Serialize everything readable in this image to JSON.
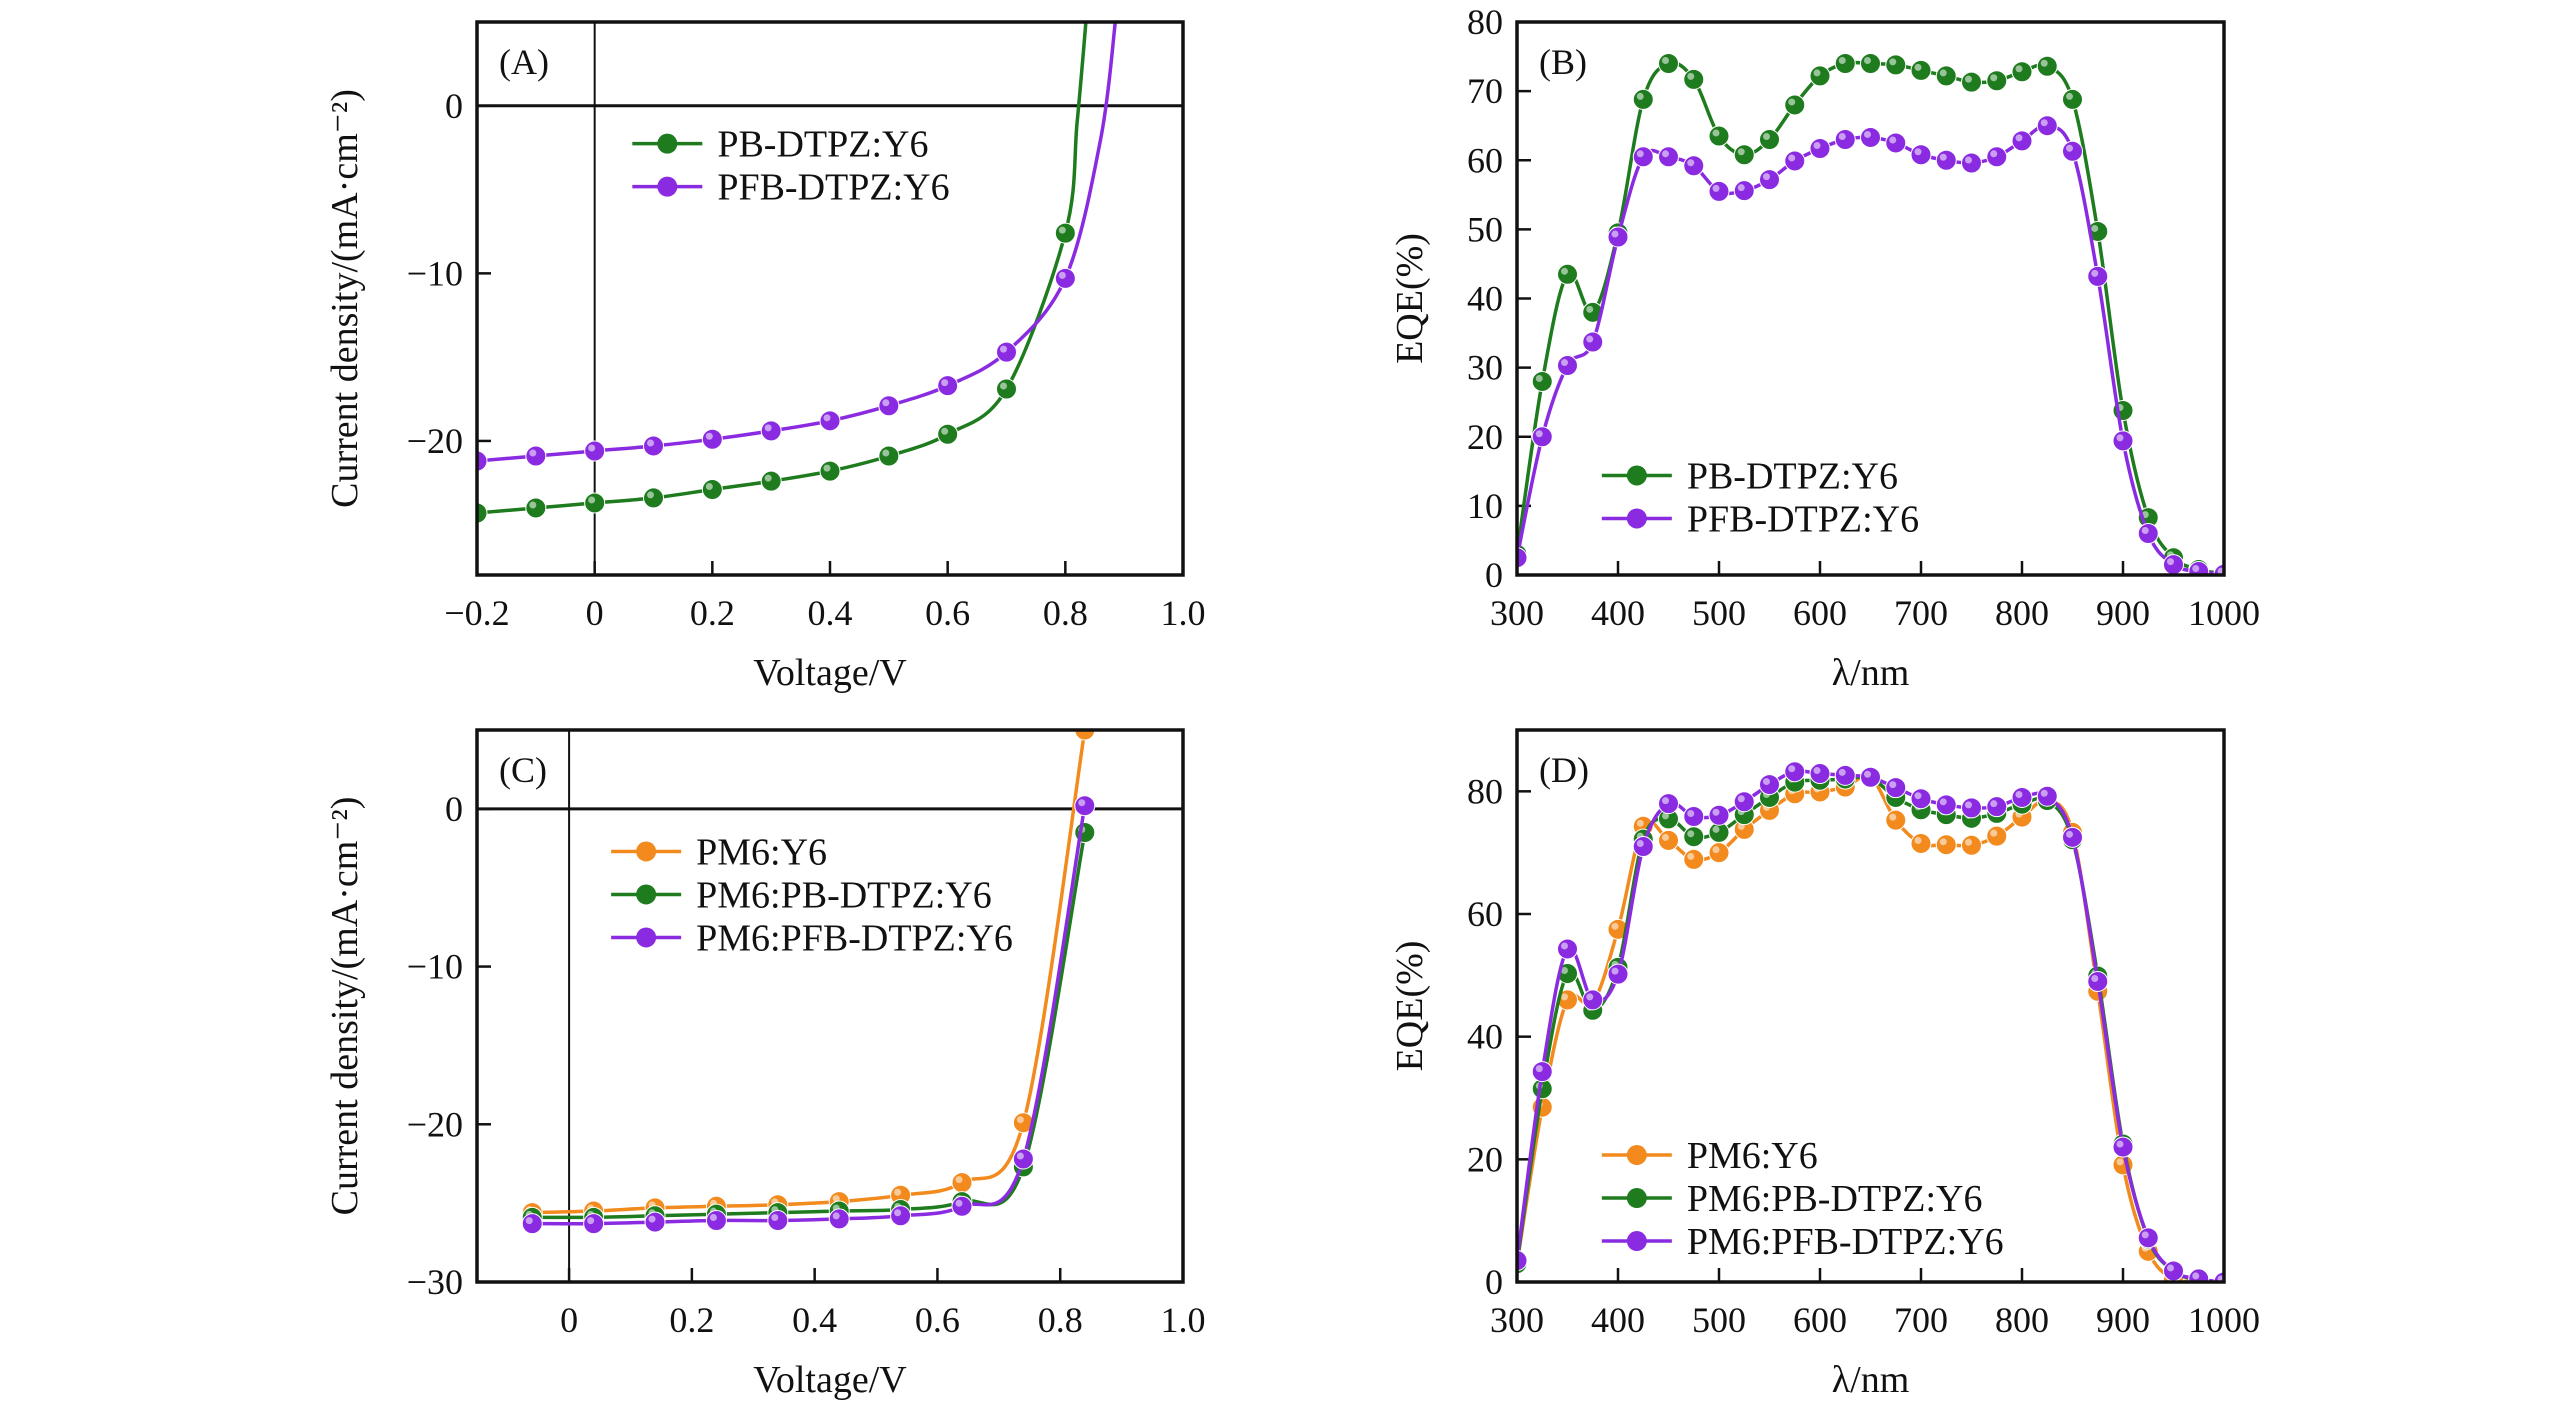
{
  "colors": {
    "green": "#1e7b1e",
    "purple": "#8a2be2",
    "orange": "#f28a1e",
    "axis": "#111111"
  },
  "chart_data": [
    {
      "id": "A",
      "panel_label": "(A)",
      "type": "line",
      "xlabel": "Voltage/V",
      "ylabel": "Current density/(mA·cm⁻²)",
      "xlim": [
        -0.2,
        1.0
      ],
      "ylim": [
        -28,
        5
      ],
      "xticks": [
        -0.2,
        0,
        0.2,
        0.4,
        0.6,
        0.8,
        1.0
      ],
      "xtick_labels": [
        "−0.2",
        "0",
        "0.2",
        "0.4",
        "0.6",
        "0.8",
        "1.0"
      ],
      "yticks": [
        -20,
        -10,
        0
      ],
      "ytick_labels": [
        "−20",
        "−10",
        "0"
      ],
      "zero_lines": true,
      "legend_position": "upper-center",
      "series": [
        {
          "name": "PB-DTPZ:Y6",
          "color_key": "green",
          "x": [
            -0.2,
            -0.1,
            0,
            0.1,
            0.2,
            0.3,
            0.4,
            0.5,
            0.6,
            0.7,
            0.8
          ],
          "y": [
            -24.3,
            -24.0,
            -23.7,
            -23.4,
            -22.9,
            -22.4,
            -21.8,
            -20.9,
            -19.6,
            -16.9,
            -7.6
          ],
          "curve_extra": [
            [
              0.82,
              -1.0
            ],
            [
              0.835,
              5
            ]
          ]
        },
        {
          "name": "PFB-DTPZ:Y6",
          "color_key": "purple",
          "x": [
            -0.2,
            -0.1,
            0,
            0.1,
            0.2,
            0.3,
            0.4,
            0.5,
            0.6,
            0.7,
            0.8
          ],
          "y": [
            -21.2,
            -20.9,
            -20.6,
            -20.3,
            -19.9,
            -19.4,
            -18.8,
            -17.9,
            -16.7,
            -14.7,
            -10.3
          ],
          "curve_extra": [
            [
              0.86,
              -2.0
            ],
            [
              0.885,
              5
            ]
          ]
        }
      ]
    },
    {
      "id": "B",
      "panel_label": "(B)",
      "type": "line",
      "xlabel": "λ/nm",
      "ylabel": "EQE(%)",
      "xlim": [
        300,
        1000
      ],
      "ylim": [
        0,
        80
      ],
      "xticks": [
        300,
        400,
        500,
        600,
        700,
        800,
        900,
        1000
      ],
      "xtick_labels": [
        "300",
        "400",
        "500",
        "600",
        "700",
        "800",
        "900",
        "1000"
      ],
      "yticks": [
        0,
        10,
        20,
        30,
        40,
        50,
        60,
        70,
        80
      ],
      "ytick_labels": [
        "0",
        "10",
        "20",
        "30",
        "40",
        "50",
        "60",
        "70",
        "80"
      ],
      "legend_position": "lower-left",
      "series": [
        {
          "name": "PB-DTPZ:Y6",
          "color_key": "green",
          "x": [
            300,
            325,
            350,
            375,
            400,
            425,
            450,
            475,
            500,
            525,
            550,
            575,
            600,
            625,
            650,
            675,
            700,
            725,
            750,
            775,
            800,
            825,
            850,
            875,
            900,
            925,
            950,
            975,
            1000
          ],
          "y": [
            3,
            28,
            43.5,
            38,
            49.5,
            68.8,
            74,
            71.7,
            63.5,
            60.8,
            63,
            68,
            72.2,
            74,
            74,
            73.8,
            73,
            72.2,
            71.3,
            71.5,
            72.8,
            73.6,
            68.8,
            49.7,
            23.8,
            8.3,
            2.5,
            0.8,
            0.2
          ]
        },
        {
          "name": "PFB-DTPZ:Y6",
          "color_key": "purple",
          "x": [
            300,
            325,
            350,
            375,
            400,
            425,
            450,
            475,
            500,
            525,
            550,
            575,
            600,
            625,
            650,
            675,
            700,
            725,
            750,
            775,
            800,
            825,
            850,
            875,
            900,
            925,
            950,
            975,
            1000
          ],
          "y": [
            2.5,
            20,
            30.3,
            33.7,
            48.9,
            60.5,
            60.5,
            59.2,
            55.5,
            55.6,
            57.2,
            59.9,
            61.7,
            63,
            63.3,
            62.5,
            60.8,
            60,
            59.6,
            60.5,
            62.8,
            65,
            61.3,
            43.2,
            19.4,
            6,
            1.5,
            0.5,
            0.1
          ]
        }
      ]
    },
    {
      "id": "C",
      "panel_label": "(C)",
      "type": "line",
      "xlabel": "Voltage/V",
      "ylabel": "Current density/(mA·cm⁻²)",
      "xlim": [
        -0.15,
        1.0
      ],
      "ylim": [
        -30,
        5
      ],
      "xticks": [
        0,
        0.2,
        0.4,
        0.6,
        0.8,
        1.0
      ],
      "xtick_labels": [
        "0",
        "0.2",
        "0.4",
        "0.6",
        "0.8",
        "1.0"
      ],
      "yticks": [
        -30,
        -20,
        -10,
        0
      ],
      "ytick_labels": [
        "−30",
        "−20",
        "−10",
        "0"
      ],
      "zero_lines": true,
      "legend_position": "upper-center",
      "series": [
        {
          "name": "PM6:Y6",
          "color_key": "orange",
          "x": [
            -0.06,
            0.04,
            0.14,
            0.24,
            0.34,
            0.44,
            0.54,
            0.64,
            0.74,
            0.84
          ],
          "y": [
            -25.6,
            -25.5,
            -25.3,
            -25.2,
            -25.1,
            -24.9,
            -24.5,
            -23.7,
            -19.9,
            5
          ]
        },
        {
          "name": "PM6:PB-DTPZ:Y6",
          "color_key": "green",
          "x": [
            -0.06,
            0.04,
            0.14,
            0.24,
            0.34,
            0.44,
            0.54,
            0.64,
            0.74,
            0.84
          ],
          "y": [
            -25.9,
            -25.9,
            -25.8,
            -25.7,
            -25.6,
            -25.5,
            -25.4,
            -24.9,
            -22.7,
            -1.5
          ]
        },
        {
          "name": "PM6:PFB-DTPZ:Y6",
          "color_key": "purple",
          "x": [
            -0.06,
            0.04,
            0.14,
            0.24,
            0.34,
            0.44,
            0.54,
            0.64,
            0.74,
            0.84
          ],
          "y": [
            -26.3,
            -26.3,
            -26.2,
            -26.1,
            -26.1,
            -26.0,
            -25.8,
            -25.2,
            -22.2,
            0.2
          ]
        }
      ]
    },
    {
      "id": "D",
      "panel_label": "(D)",
      "type": "line",
      "xlabel": "λ/nm",
      "ylabel": "EQE(%)",
      "xlim": [
        300,
        1000
      ],
      "ylim": [
        0,
        90
      ],
      "xticks": [
        300,
        400,
        500,
        600,
        700,
        800,
        900,
        1000
      ],
      "xtick_labels": [
        "300",
        "400",
        "500",
        "600",
        "700",
        "800",
        "900",
        "1000"
      ],
      "yticks": [
        0,
        20,
        40,
        60,
        80
      ],
      "ytick_labels": [
        "0",
        "20",
        "40",
        "60",
        "80"
      ],
      "legend_position": "lower-left",
      "series": [
        {
          "name": "PM6:Y6",
          "color_key": "orange",
          "x": [
            300,
            325,
            350,
            375,
            400,
            425,
            450,
            475,
            500,
            525,
            550,
            575,
            600,
            625,
            650,
            675,
            700,
            725,
            750,
            775,
            800,
            825,
            850,
            875,
            900,
            925,
            950,
            975,
            1000
          ],
          "y": [
            3,
            28.5,
            46,
            45.5,
            57.5,
            74.3,
            72,
            68.9,
            70,
            73.8,
            76.9,
            79.6,
            79.9,
            80.7,
            82.3,
            75.3,
            71.5,
            71.3,
            71.2,
            72.7,
            75.8,
            78.5,
            73.3,
            47.4,
            19.1,
            5,
            0.5,
            0.2,
            0
          ]
        },
        {
          "name": "PM6:PB-DTPZ:Y6",
          "color_key": "green",
          "x": [
            300,
            325,
            350,
            375,
            400,
            425,
            450,
            475,
            500,
            525,
            550,
            575,
            600,
            625,
            650,
            675,
            700,
            725,
            750,
            775,
            800,
            825,
            850,
            875,
            900,
            925,
            950,
            975,
            1000
          ],
          "y": [
            3,
            31.5,
            50.3,
            44.3,
            51.3,
            72.2,
            75.5,
            72.6,
            73.3,
            76.2,
            79,
            81.5,
            81.8,
            82,
            82.2,
            79,
            77,
            76.2,
            75.6,
            76.4,
            77.9,
            78.5,
            72.1,
            49.9,
            22.5,
            7,
            1.8,
            0.3,
            0
          ]
        },
        {
          "name": "PM6:PFB-DTPZ:Y6",
          "color_key": "purple",
          "x": [
            300,
            325,
            350,
            375,
            400,
            425,
            450,
            475,
            500,
            525,
            550,
            575,
            600,
            625,
            650,
            675,
            700,
            725,
            750,
            775,
            800,
            825,
            850,
            875,
            900,
            925,
            950,
            975,
            1000
          ],
          "y": [
            3.5,
            34.3,
            54.3,
            46,
            50.2,
            71,
            78,
            75.9,
            76.1,
            78.3,
            81.1,
            83.2,
            82.9,
            82.6,
            82.3,
            80.6,
            78.8,
            77.8,
            77.3,
            77.5,
            79,
            79.2,
            72.5,
            49,
            22,
            7.2,
            1.8,
            0.5,
            0
          ]
        }
      ]
    }
  ]
}
